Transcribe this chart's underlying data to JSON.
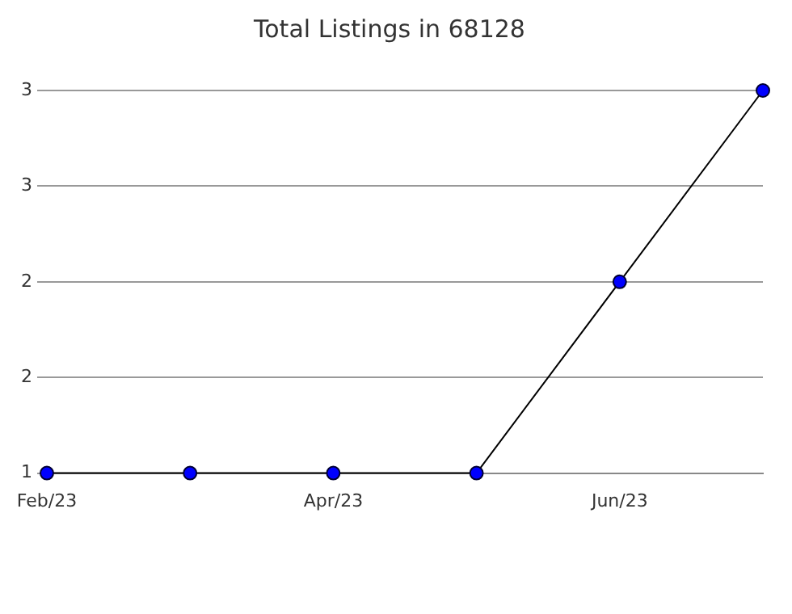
{
  "chart_data": {
    "type": "line",
    "title": "Total Listings in 68128",
    "categories": [
      "Feb/23",
      null,
      "Apr/23",
      null,
      "Jun/23",
      null
    ],
    "series": [
      {
        "color": "#0000ff",
        "values": [
          1,
          1,
          1,
          1,
          2,
          3
        ]
      }
    ],
    "ylim": [
      1,
      3
    ],
    "yticks": [
      1,
      {
        "value": 1.5,
        "label": "2"
      },
      2,
      {
        "value": 2.5,
        "label": "3"
      },
      3
    ],
    "grid": "y",
    "legend": false,
    "marker": "circle"
  }
}
